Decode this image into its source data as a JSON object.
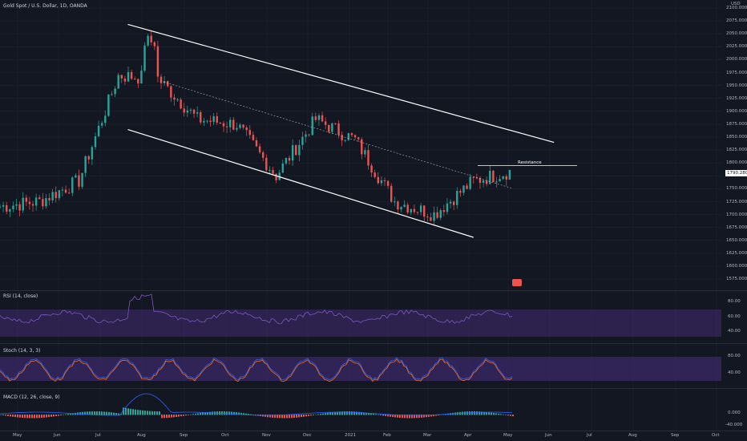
{
  "header": {
    "symbol_title": "Gold Spot / U.S. Dollar, 1D, OANDA"
  },
  "price_axis": {
    "currency": "USD",
    "ticks": [
      "2100.000",
      "2075.000",
      "2050.000",
      "2025.000",
      "2000.000",
      "1975.000",
      "1950.000",
      "1925.000",
      "1900.000",
      "1875.000",
      "1850.000",
      "1825.000",
      "1800.000",
      "1775.000",
      "1750.000",
      "1725.000",
      "1700.000",
      "1675.000",
      "1650.000",
      "1625.000",
      "1600.000",
      "1575.000"
    ],
    "current_price": "1790.280"
  },
  "time_axis": {
    "labels": [
      "May",
      "Jun",
      "Jul",
      "Aug",
      "Sep",
      "Oct",
      "Nov",
      "Dec",
      "2021",
      "Feb",
      "Mar",
      "Apr",
      "May",
      "Jun",
      "Jul",
      "Aug",
      "Sep",
      "Oct"
    ]
  },
  "annotations": {
    "resistance_label": "Resistance"
  },
  "indicators": {
    "rsi": {
      "title": "RSI (14, close)",
      "ticks": [
        "80.00",
        "60.00",
        "40.00"
      ]
    },
    "stoch": {
      "title": "Stoch (14, 3, 3)",
      "ticks": [
        "80.00",
        "40.00"
      ]
    },
    "macd": {
      "title": "MACD (12, 26, close, 9)",
      "ticks": [
        "0.000",
        "-40.000"
      ]
    }
  },
  "colors": {
    "background": "#131722",
    "up": "#26a69a",
    "down": "#ef5350",
    "grid": "#1f2330",
    "rsi": "#7e57c2",
    "band": "#3d2a6b"
  },
  "chart_data": {
    "type": "candlestick",
    "x": [
      "2020-04",
      "2020-05",
      "2020-06",
      "2020-07",
      "2020-08",
      "2020-09",
      "2020-10",
      "2020-11",
      "2020-12",
      "2021-01",
      "2021-02",
      "2021-03",
      "2021-04",
      "2021-05"
    ],
    "close": [
      1720,
      1730,
      1770,
      1975,
      1970,
      1890,
      1880,
      1780,
      1890,
      1850,
      1730,
      1705,
      1770,
      1790
    ],
    "ylim": [
      1560,
      2110
    ],
    "channel_upper": [
      [
        2020.6,
        2075
      ],
      [
        2021.5,
        1845
      ]
    ],
    "channel_lower": [
      [
        2020.6,
        1870
      ],
      [
        2021.33,
        1660
      ]
    ],
    "resistance": 1800,
    "last_price": 1790.28
  }
}
